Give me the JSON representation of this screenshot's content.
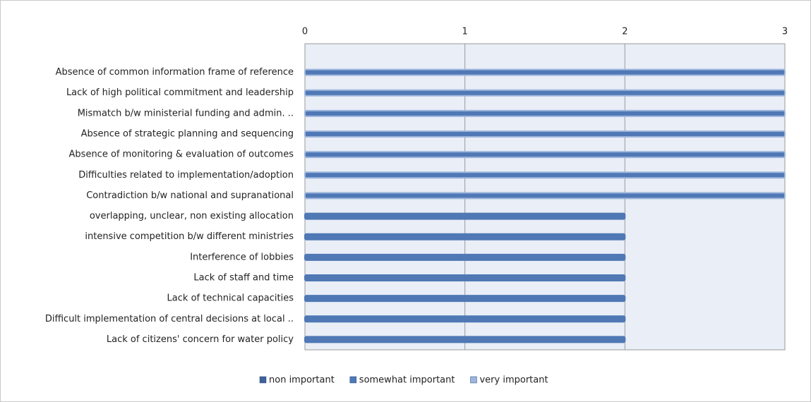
{
  "chart_data": {
    "type": "bar",
    "orientation": "horizontal",
    "categories": [
      "Absence of common information frame of reference",
      "Lack of high political commitment and leadership",
      "Mismatch b/w ministerial funding and admin. ..",
      "Absence of strategic planning and sequencing",
      "Absence of monitoring & evaluation of outcomes",
      "Difficulties related to implementation/adoption",
      "Contradiction b/w national and supranational",
      "overlapping, unclear, non existing allocation",
      "intensive competition b/w different ministries",
      "Interference of lobbies",
      "Lack of staff and time",
      "Lack of technical capacities",
      "Difficult implementation  of central decisions at local ..",
      "Lack of citizens' concern for water policy"
    ],
    "series": [
      {
        "name": "non important",
        "color": "#3f6199",
        "values": [
          null,
          null,
          null,
          null,
          null,
          null,
          null,
          null,
          null,
          null,
          null,
          null,
          null,
          null
        ]
      },
      {
        "name": "somewhat important",
        "color": "#4f78b5",
        "values": [
          null,
          null,
          null,
          null,
          null,
          null,
          null,
          2,
          2,
          2,
          2,
          2,
          2,
          2
        ]
      },
      {
        "name": "very important",
        "color": "#9db5dc",
        "values": [
          3,
          3,
          3,
          3,
          3,
          3,
          3,
          null,
          null,
          null,
          null,
          null,
          null,
          null
        ]
      }
    ],
    "xlim": [
      0,
      3
    ],
    "xticks": [
      0,
      1,
      2,
      3
    ],
    "grid": true,
    "legend": "bottom"
  }
}
